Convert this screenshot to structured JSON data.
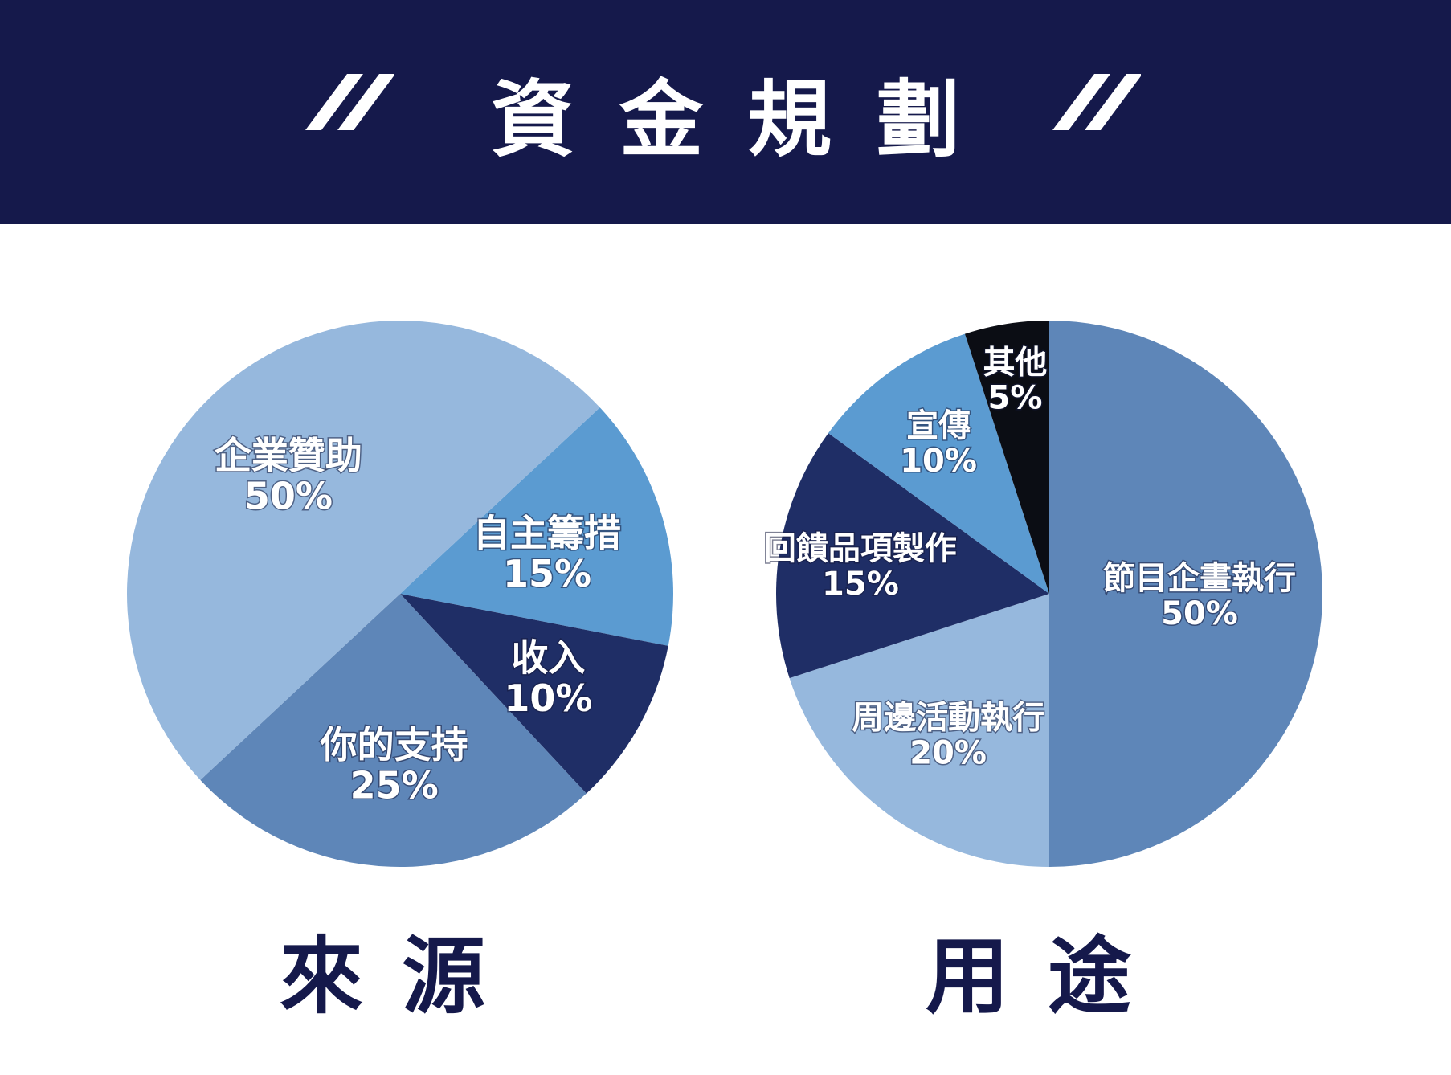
{
  "header": {
    "title": "資金規劃",
    "color": "#15194b"
  },
  "chart_data": [
    {
      "type": "pie",
      "caption": "來源",
      "slices": [
        {
          "label": "自主籌措",
          "percent_text": "15%",
          "value": 15,
          "color": "#5b9bd1"
        },
        {
          "label": "收入",
          "percent_text": "10%",
          "value": 10,
          "color": "#1f2e66"
        },
        {
          "label": "你的支持",
          "percent_text": "25%",
          "value": 25,
          "color": "#5e86b8"
        },
        {
          "label": "企業贊助",
          "percent_text": "50%",
          "value": 50,
          "color": "#96b8dd"
        }
      ]
    },
    {
      "type": "pie",
      "caption": "用途",
      "slices": [
        {
          "label": "節目企畫執行",
          "percent_text": "50%",
          "value": 50,
          "color": "#5e86b8"
        },
        {
          "label": "周邊活動執行",
          "percent_text": "20%",
          "value": 20,
          "color": "#96b8dd"
        },
        {
          "label": "回饋品項製作",
          "percent_text": "15%",
          "value": 15,
          "color": "#1f2e66"
        },
        {
          "label": "宣傳",
          "percent_text": "10%",
          "value": 10,
          "color": "#5b9bd1"
        },
        {
          "label": "其他",
          "percent_text": "5%",
          "value": 5,
          "color": "#0b0d14"
        }
      ]
    }
  ]
}
